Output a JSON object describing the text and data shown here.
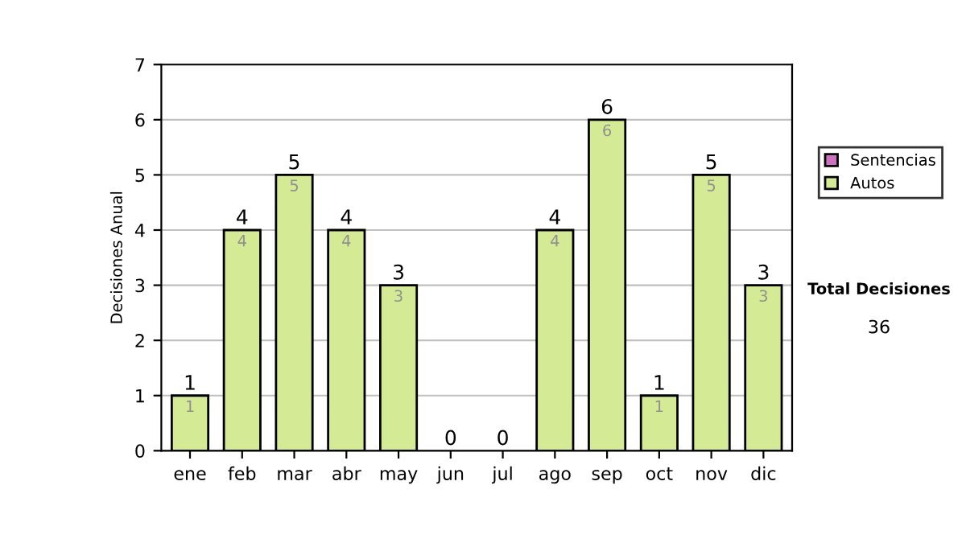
{
  "chart_data": {
    "type": "bar",
    "ylabel": "Decisiones Anual",
    "categories": [
      "ene",
      "feb",
      "mar",
      "abr",
      "may",
      "jun",
      "jul",
      "ago",
      "sep",
      "oct",
      "nov",
      "dic"
    ],
    "stacked": true,
    "series": [
      {
        "name": "Sentencias",
        "color": "#d070c0",
        "values": [
          0,
          0,
          0,
          0,
          0,
          0,
          0,
          0,
          0,
          0,
          0,
          0
        ]
      },
      {
        "name": "Autos",
        "color": "#d4ea94",
        "values": [
          1,
          4,
          5,
          4,
          3,
          0,
          0,
          4,
          6,
          1,
          5,
          3
        ],
        "value_labels": [
          "1",
          "4",
          "5",
          "4",
          "3",
          null,
          null,
          "4",
          "6",
          "1",
          "5",
          "3"
        ]
      }
    ],
    "totals": [
      "1",
      "4",
      "5",
      "4",
      "3",
      "0",
      "0",
      "4",
      "6",
      "1",
      "5",
      "3"
    ],
    "ylim": [
      0,
      7
    ],
    "yticks": [
      0,
      1,
      2,
      3,
      4,
      5,
      6,
      7
    ],
    "grid": "y",
    "legend": "right",
    "annotations": [
      "Total Decisiones",
      "36"
    ]
  }
}
